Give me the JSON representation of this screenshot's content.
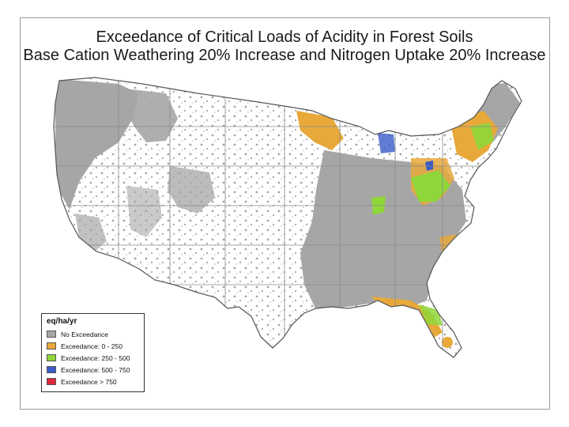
{
  "title_line1": "Exceedance of Critical Loads of Acidity in Forest Soils",
  "title_line2": "Base Cation Weathering 20% Increase and Nitrogen Uptake 20% Increase",
  "legend": {
    "title": "eq/ha/yr",
    "items": [
      {
        "label": "No Exceedance",
        "color": "#a6a6a6"
      },
      {
        "label": "Exceedance: 0 - 250",
        "color": "#e8a93a"
      },
      {
        "label": "Exceedance: 250 - 500",
        "color": "#8fd63a"
      },
      {
        "label": "Exceedance: 500 - 750",
        "color": "#3a5bc8"
      },
      {
        "label": "Exceedance > 750",
        "color": "#e0263a"
      }
    ]
  },
  "colors": {
    "state_border": "#8a8a8a",
    "map_outline": "#555555"
  }
}
